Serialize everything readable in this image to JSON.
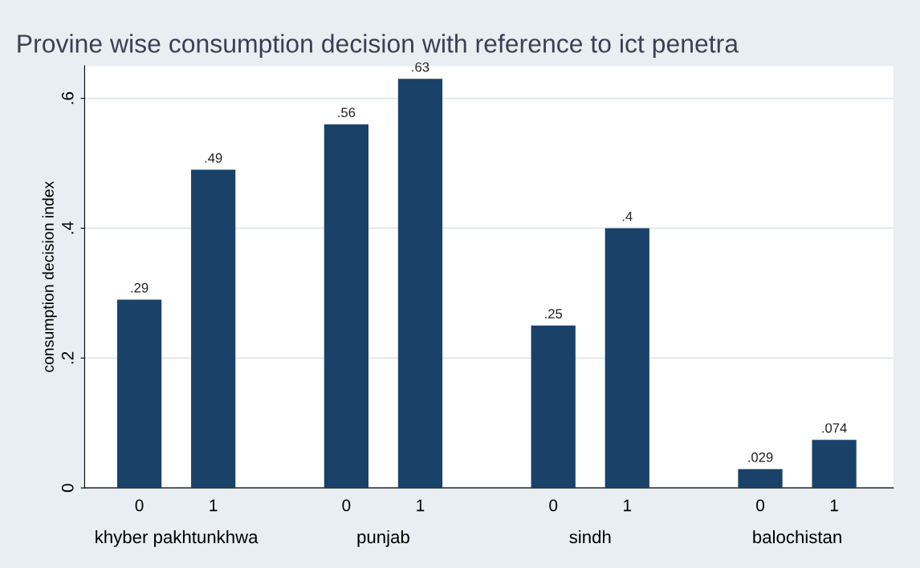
{
  "chart_data": {
    "type": "bar",
    "title": "Provine wise consumption decision with reference to ict penetra",
    "ylabel": "consumption decision index",
    "categories": [
      "0",
      "1",
      "0",
      "1",
      "0",
      "1",
      "0",
      "1"
    ],
    "values": [
      0.29,
      0.49,
      0.56,
      0.63,
      0.25,
      0.4,
      0.029,
      0.074
    ],
    "value_labels": [
      ".29",
      ".49",
      ".56",
      ".63",
      ".25",
      ".4",
      ".029",
      ".074"
    ],
    "color": "#1a4269",
    "ylim": [
      0,
      0.65
    ],
    "yticks": [
      0,
      {
        "value": 0.2,
        "label": ".2"
      },
      {
        "value": 0.4,
        "label": ".4"
      },
      {
        "value": 0.6,
        "label": ".6"
      }
    ],
    "grid": "y",
    "annotations": [
      "khyber pakhtunkhwa",
      "punjab",
      "sindh",
      "balochistan"
    ]
  }
}
